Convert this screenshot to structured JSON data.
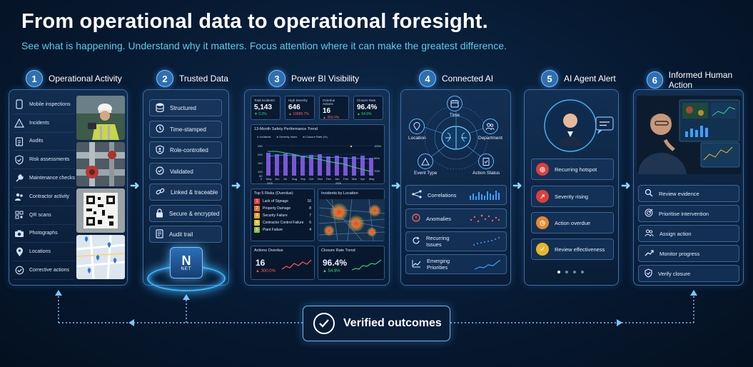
{
  "header": {
    "title": "From operational data to operational foresight.",
    "subtitle": "See what is happening. Understand why it matters. Focus attention where it can make the greatest difference."
  },
  "steps": [
    {
      "num": "1",
      "label": "Operational Activity"
    },
    {
      "num": "2",
      "label": "Trusted Data"
    },
    {
      "num": "3",
      "label": "Power BI Visibility"
    },
    {
      "num": "4",
      "label": "Connected AI"
    },
    {
      "num": "5",
      "label": "AI Agent Alert"
    },
    {
      "num": "6",
      "label": "Informed Human Action"
    }
  ],
  "activity": {
    "items": [
      "Mobile inspections",
      "Incidents",
      "Audits",
      "Risk assessments",
      "Maintenance checks",
      "Contractor activity",
      "QR scans",
      "Photographs",
      "Locations",
      "Corrective actions"
    ]
  },
  "trusted": {
    "items": [
      "Structured",
      "Time-stamped",
      "Role-controlled",
      "Validated",
      "Linked & traceable",
      "Secure & encrypted",
      "Audit trail"
    ],
    "logo_letter": "N",
    "logo_text": "NET"
  },
  "powerbi": {
    "kpis": [
      {
        "label": "Total Incidents",
        "value": "5,143",
        "delta": "▼ 0.0%",
        "color": "#37d27a"
      },
      {
        "label": "High Severity",
        "value": "646",
        "delta": "▲ 10686.7%",
        "color": "#ff5a5a"
      },
      {
        "label": "Overdue Actions",
        "value": "16",
        "delta": "▲ 300.0%",
        "color": "#ff5a5a"
      },
      {
        "label": "Closure Rate",
        "value": "96.4%",
        "delta": "▲ 54.9%",
        "color": "#37d27a"
      }
    ],
    "trend_title": "13-Month Safety Performance Trend",
    "trend_legend": [
      "Incidents",
      "Severity Index",
      "Closure Rate (%)"
    ],
    "trend_left_ticks": [
      "250",
      "200",
      "150",
      "100",
      "50",
      "0"
    ],
    "trend_right_ticks": [
      "100%",
      "85%",
      "70%"
    ],
    "trend_months": [
      "May",
      "Jun",
      "Jul",
      "Aug",
      "Sep",
      "Oct",
      "Nov",
      "Dec",
      "Jan",
      "Feb",
      "Mar",
      "Apr",
      "May"
    ],
    "trend_years": [
      "2025",
      "2026"
    ],
    "risks_title": "Top 5 Risks (Overdue)",
    "risks": [
      {
        "num": "1",
        "label": "Lack of Signage",
        "value": "16",
        "color": "#e0453a"
      },
      {
        "num": "2",
        "label": "Property Damage",
        "value": "8",
        "color": "#e8732a"
      },
      {
        "num": "3",
        "label": "Security Failure",
        "value": "7",
        "color": "#e9a027"
      },
      {
        "num": "4",
        "label": "Contractor Control Failure",
        "value": "6",
        "color": "#e5c22e"
      },
      {
        "num": "5",
        "label": "Plant Failure",
        "value": "4",
        "color": "#8fc43a"
      }
    ],
    "map_title": "Incidents by Location",
    "overdue_title": "Actions Overdue",
    "overdue_value": "16",
    "overdue_delta": "▲ 300.0%",
    "closure_title": "Closure Rate Trend",
    "closure_value": "96.4%",
    "closure_delta": "▲ 54.9%"
  },
  "connected_ai": {
    "nodes": [
      "Time",
      "Location",
      "Department",
      "Event Type",
      "Action Status"
    ],
    "rows": [
      "Correlations",
      "Anomalies",
      "Recurring Issues",
      "Emerging Priorities"
    ]
  },
  "agent_alert": {
    "rows": [
      {
        "label": "Recurring hotspot",
        "color": "#d9403a",
        "glyph": "◎"
      },
      {
        "label": "Severity rising",
        "color": "#d9403a",
        "glyph": "↗"
      },
      {
        "label": "Action overdue",
        "color": "#e8872a",
        "glyph": "◷"
      },
      {
        "label": "Review effectiveness",
        "color": "#e9b52a",
        "glyph": "✓"
      }
    ]
  },
  "human_action": {
    "rows": [
      "Review evidence",
      "Prioritise intervention",
      "Assign action",
      "Monitor progress",
      "Verify closure"
    ]
  },
  "verified": {
    "label": "Verified outcomes"
  }
}
